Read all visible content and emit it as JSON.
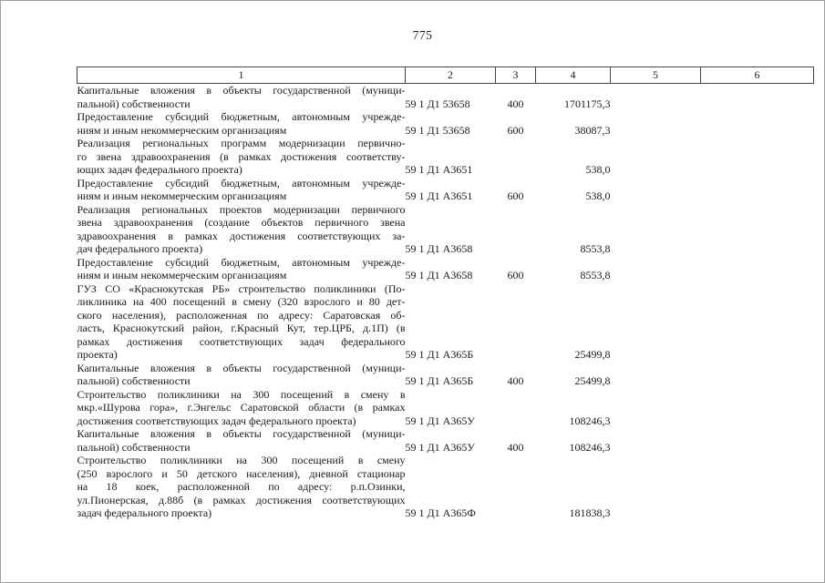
{
  "page": {
    "number": "775"
  },
  "table": {
    "headers": [
      "1",
      "2",
      "3",
      "4",
      "5",
      "6"
    ],
    "rows": [
      {
        "description_lines": [
          "Капитальные вложения в объекты государственной (муници-",
          "пальной) собственности"
        ],
        "code": "59 1 Д1 53658",
        "expense_type": "400",
        "amount": "1701175,3"
      },
      {
        "description_lines": [
          "Предоставление субсидий бюджетным, автономным учрежде-",
          "ниям и иным некоммерческим организациям"
        ],
        "code": "59 1 Д1 53658",
        "expense_type": "600",
        "amount": "38087,3"
      },
      {
        "description_lines": [
          "Реализация региональных программ модернизации первично-",
          "го звена здравоохранения (в рамках достижения соответству-",
          "ющих задач федерального проекта)"
        ],
        "code": "59 1 Д1 А3651",
        "expense_type": "",
        "amount": "538,0"
      },
      {
        "description_lines": [
          "Предоставление субсидий бюджетным, автономным учрежде-",
          "ниям и иным некоммерческим организациям"
        ],
        "code": "59 1 Д1 А3651",
        "expense_type": "600",
        "amount": "538,0"
      },
      {
        "description_lines": [
          "Реализация региональных проектов модернизации первичного",
          "звена здравоохранения (создание объектов первичного звена",
          "здравоохранения в рамках достижения соответствующих за-",
          "дач федерального проекта)"
        ],
        "code": "59 1 Д1 А3658",
        "expense_type": "",
        "amount": "8553,8"
      },
      {
        "description_lines": [
          "Предоставление субсидий бюджетным, автономным учрежде-",
          "ниям и иным некоммерческим организациям"
        ],
        "code": "59 1 Д1 А3658",
        "expense_type": "600",
        "amount": "8553,8"
      },
      {
        "description_lines": [
          "ГУЗ СО «Краснокутская РБ» строительство поликлиники (По-",
          "ликлиника на 400 посещений в смену (320 взрослого и 80 дет-",
          "ского населения), расположенная по адресу: Саратовская об-",
          "ласть, Краснокутский район, г.Красный Кут, тер.ЦРБ, д.1П) (в",
          "рамках достижения соответствующих задач федерального",
          "проекта)"
        ],
        "code": "59 1 Д1 А365Б",
        "expense_type": "",
        "amount": "25499,8"
      },
      {
        "description_lines": [
          "Капитальные вложения в объекты государственной (муници-",
          "пальной) собственности"
        ],
        "code": "59 1 Д1 А365Б",
        "expense_type": "400",
        "amount": "25499,8"
      },
      {
        "description_lines": [
          "Строительство поликлиники на 300 посещений в смену в",
          "мкр.«Шурова гора», г.Энгельс Саратовской области (в рамках",
          "достижения соответствующих задач федерального проекта)"
        ],
        "code": "59 1 Д1 А365У",
        "expense_type": "",
        "amount": "108246,3"
      },
      {
        "description_lines": [
          "Капитальные вложения в объекты государственной (муници-",
          "пальной) собственности"
        ],
        "code": "59 1 Д1 А365У",
        "expense_type": "400",
        "amount": "108246,3"
      },
      {
        "description_lines": [
          "Строительство поликлиники на 300 посещений в смену",
          "(250 взрослого и 50 детского населения), дневной стационар",
          "на 18 коек, расположенной по адресу: р.п.Озинки,",
          "ул.Пионерская, д.88б (в рамках достижения соответствующих",
          "задач федерального проекта)"
        ],
        "code": "59 1 Д1 А365Ф",
        "expense_type": "",
        "amount": "181838,3"
      }
    ]
  }
}
